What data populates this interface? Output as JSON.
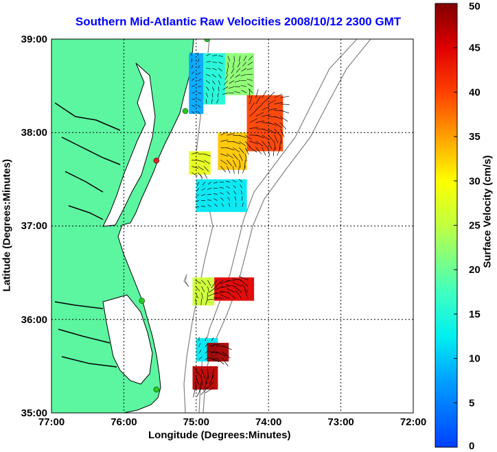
{
  "title": "Southern Mid-Atlantic Raw Velocities 2008/10/12 2300 GMT",
  "axes": {
    "xlabel": "Longitude (Degrees:Minutes)",
    "ylabel": "Latitude (Degrees:Minutes)",
    "x_ticks": [
      "77:00",
      "76:00",
      "75:00",
      "74:00",
      "73:00",
      "72:00"
    ],
    "y_ticks": [
      "39:00",
      "38:00",
      "37:00",
      "36:00",
      "35:00"
    ],
    "xlim": [
      -77,
      -72
    ],
    "ylim": [
      35,
      39
    ],
    "grid": "dotted"
  },
  "colorbar": {
    "label": "Surface Velocity (cm/s)",
    "ticks": [
      "50",
      "45",
      "40",
      "35",
      "30",
      "25",
      "20",
      "15",
      "10",
      "5",
      "0"
    ],
    "range": [
      0,
      50
    ],
    "colormap": "jet"
  },
  "colors": {
    "title": "#0000ff",
    "land": "#5cf5a0",
    "coast": "#000000",
    "bathymetry": "#808080",
    "station_ok": "#22cc22",
    "station_bad": "#dd2222"
  },
  "stations": [
    {
      "lon": -74.85,
      "lat": 39.0,
      "status": "ok"
    },
    {
      "lon": -75.15,
      "lat": 38.23,
      "status": "ok"
    },
    {
      "lon": -75.55,
      "lat": 37.7,
      "status": "bad"
    },
    {
      "lon": -75.75,
      "lat": 36.2,
      "status": "ok"
    },
    {
      "lon": -75.55,
      "lat": 35.25,
      "status": "ok"
    }
  ],
  "chart_data": {
    "type": "heatmap",
    "description_units": "surface current speed, cm/s",
    "regions": [
      {
        "lon_range": [
          -75.1,
          -74.9
        ],
        "lat_range": [
          38.2,
          38.85
        ],
        "speed": 8
      },
      {
        "lon_range": [
          -74.9,
          -74.6
        ],
        "lat_range": [
          38.3,
          38.85
        ],
        "speed": 15
      },
      {
        "lon_range": [
          -74.6,
          -74.2
        ],
        "lat_range": [
          38.4,
          38.85
        ],
        "speed": 22
      },
      {
        "lon_range": [
          -74.3,
          -73.8
        ],
        "lat_range": [
          37.8,
          38.4
        ],
        "speed": 40
      },
      {
        "lon_range": [
          -74.7,
          -74.3
        ],
        "lat_range": [
          37.6,
          38.0
        ],
        "speed": 33
      },
      {
        "lon_range": [
          -75.1,
          -74.8
        ],
        "lat_range": [
          37.55,
          37.8
        ],
        "speed": 28
      },
      {
        "lon_range": [
          -75.0,
          -74.3
        ],
        "lat_range": [
          37.15,
          37.5
        ],
        "speed": 12
      },
      {
        "lon_range": [
          -75.05,
          -74.75
        ],
        "lat_range": [
          36.15,
          36.45
        ],
        "speed": 26
      },
      {
        "lon_range": [
          -74.75,
          -74.2
        ],
        "lat_range": [
          36.2,
          36.45
        ],
        "speed": 45
      },
      {
        "lon_range": [
          -75.0,
          -74.7
        ],
        "lat_range": [
          35.55,
          35.8
        ],
        "speed": 12
      },
      {
        "lon_range": [
          -74.85,
          -74.55
        ],
        "lat_range": [
          35.55,
          35.75
        ],
        "speed": 48
      },
      {
        "lon_range": [
          -75.05,
          -74.7
        ],
        "lat_range": [
          35.25,
          35.5
        ],
        "speed": 47
      }
    ]
  }
}
